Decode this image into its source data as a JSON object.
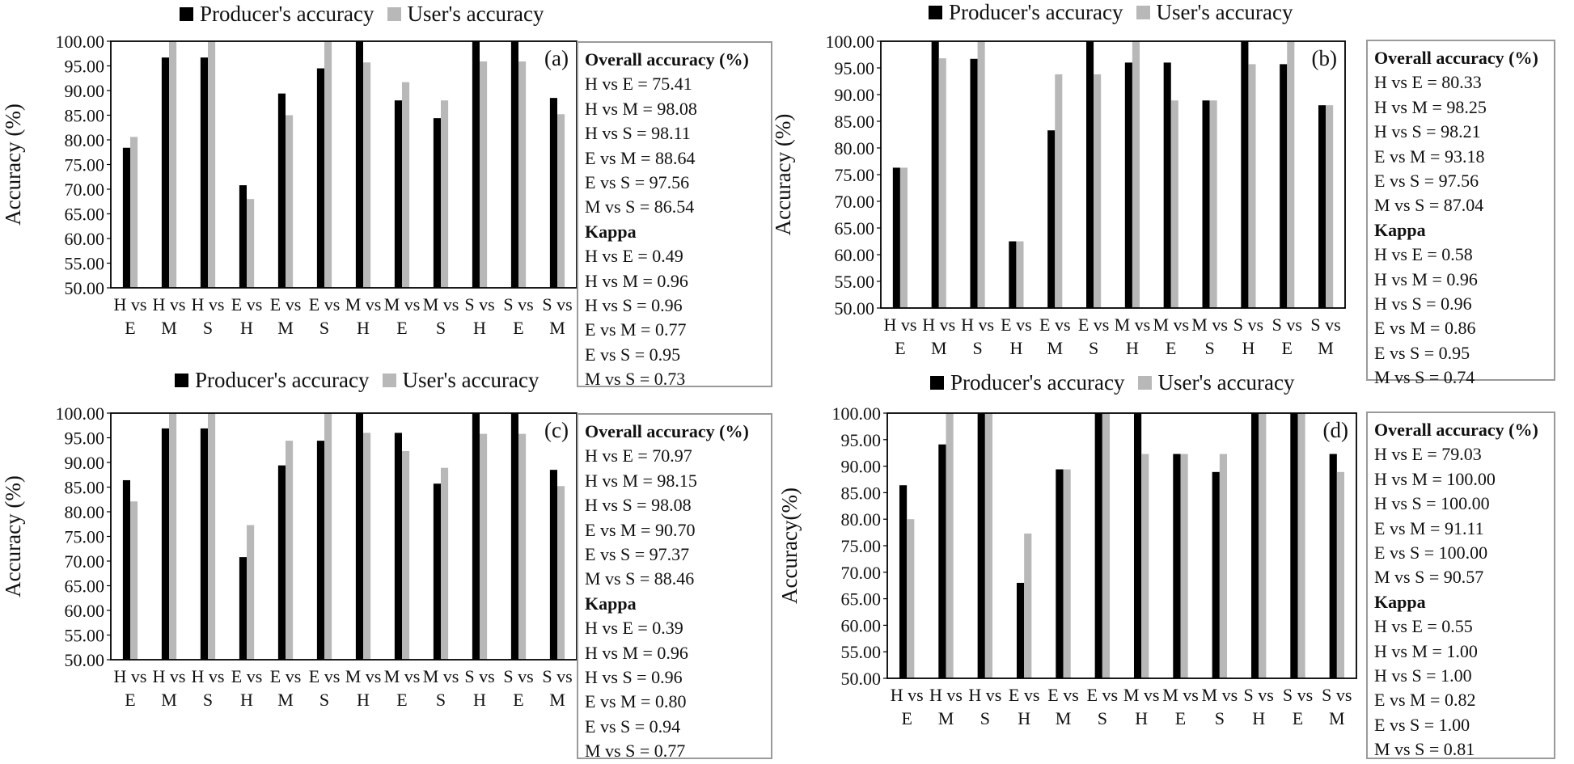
{
  "colors": {
    "producer": "#000000",
    "user": "#b8b8b8"
  },
  "panels": [
    {
      "id": "a",
      "legend": [
        "Producer's accuracy",
        "User's accuracy"
      ],
      "panel_label": "(a)",
      "stats": {
        "overall_title": "Overall accuracy (%)",
        "overall": [
          "H vs E = 75.41",
          "H vs M = 98.08",
          "H vs S = 98.11",
          "E vs M = 88.64",
          "E vs S = 97.56",
          "M vs S = 86.54"
        ],
        "kappa_title": "Kappa",
        "kappa": [
          "H vs E =  0.49",
          "H vs M = 0.96",
          "H vs S = 0.96",
          "E vs M = 0.77",
          "E vs S = 0.95",
          "M vs S = 0.73"
        ]
      }
    },
    {
      "id": "b",
      "legend": [
        "Producer's accuracy",
        "User's accuracy"
      ],
      "panel_label": "(b)",
      "stats": {
        "overall_title": "Overall accuracy (%)",
        "overall": [
          "H vs E = 80.33",
          "H vs M = 98.25",
          "H vs S = 98.21",
          "E vs M = 93.18",
          "E vs S = 97.56",
          "M vs S = 87.04"
        ],
        "kappa_title": "Kappa",
        "kappa": [
          "H vs E =  0.58",
          "H vs M = 0.96",
          "H vs S = 0.96",
          "E vs M = 0.86",
          "E vs S = 0.95",
          "M vs S = 0.74"
        ]
      }
    },
    {
      "id": "c",
      "legend": [
        "Producer's accuracy",
        "User's accuracy"
      ],
      "panel_label": "(c)",
      "stats": {
        "overall_title": "Overall accuracy (%)",
        "overall": [
          "H vs E = 70.97",
          "H vs M = 98.15",
          "H vs S = 98.08",
          "E vs M = 90.70",
          "E vs S = 97.37",
          "M vs S = 88.46"
        ],
        "kappa_title": "Kappa",
        "kappa": [
          "H vs E =  0.39",
          "H vs M = 0.96",
          "H vs S = 0.96",
          "E vs M = 0.80",
          "E vs S = 0.94",
          "M vs S = 0.77"
        ]
      }
    },
    {
      "id": "d",
      "legend": [
        "Producer's accuracy",
        "User's accuracy"
      ],
      "panel_label": "(d)",
      "stats": {
        "overall_title": "Overall accuracy (%)",
        "overall": [
          "H vs E = 79.03",
          "H vs M = 100.00",
          "H vs S = 100.00",
          "E vs M = 91.11",
          "E vs S = 100.00",
          "M vs S = 90.57"
        ],
        "kappa_title": "Kappa",
        "kappa": [
          "H vs E =  0.55",
          "H vs M = 1.00",
          "H vs S = 1.00",
          "E vs M = 0.82",
          "E vs S = 1.00",
          "M vs S = 0.81"
        ]
      }
    }
  ],
  "chart_data": [
    {
      "type": "bar",
      "panel": "(a)",
      "categories": [
        [
          "H vs",
          "E"
        ],
        [
          "H vs",
          "M"
        ],
        [
          "H vs",
          "S"
        ],
        [
          "E vs",
          "H"
        ],
        [
          "E vs",
          "M"
        ],
        [
          "E vs",
          "S"
        ],
        [
          "M vs",
          "H"
        ],
        [
          "M vs",
          "E"
        ],
        [
          "M vs",
          "S"
        ],
        [
          "S vs",
          "H"
        ],
        [
          "S vs",
          "E"
        ],
        [
          "S vs",
          "M"
        ]
      ],
      "series": [
        {
          "name": "Producer's accuracy",
          "values": [
            78.4,
            96.7,
            96.7,
            70.8,
            89.4,
            94.5,
            100,
            88.0,
            84.4,
            100,
            100,
            88.5
          ]
        },
        {
          "name": "User's accuracy",
          "values": [
            80.6,
            100,
            100,
            68.0,
            85.0,
            100,
            95.7,
            91.7,
            88.0,
            95.9,
            95.9,
            85.2
          ]
        }
      ],
      "ylabel": "Accuracy (%)",
      "ylim": [
        50,
        100
      ],
      "yticks": [
        "50.00",
        "55.00",
        "60.00",
        "65.00",
        "70.00",
        "75.00",
        "80.00",
        "85.00",
        "90.00",
        "95.00",
        "100.00"
      ]
    },
    {
      "type": "bar",
      "panel": "(b)",
      "categories": [
        [
          "H vs",
          "E"
        ],
        [
          "H vs",
          "M"
        ],
        [
          "H vs",
          "S"
        ],
        [
          "E vs",
          "H"
        ],
        [
          "E vs",
          "M"
        ],
        [
          "E vs",
          "S"
        ],
        [
          "M vs",
          "H"
        ],
        [
          "M vs",
          "E"
        ],
        [
          "M vs",
          "S"
        ],
        [
          "S vs",
          "H"
        ],
        [
          "S vs",
          "E"
        ],
        [
          "S vs",
          "M"
        ]
      ],
      "series": [
        {
          "name": "Producer's accuracy",
          "values": [
            76.3,
            100,
            96.7,
            62.5,
            83.3,
            100,
            96.0,
            96.0,
            88.9,
            100,
            95.7,
            88.0
          ]
        },
        {
          "name": "User's accuracy",
          "values": [
            76.3,
            96.8,
            100,
            62.5,
            93.8,
            93.8,
            100,
            88.9,
            88.9,
            95.7,
            100,
            88.0
          ]
        }
      ],
      "ylabel": "Accuracy (%)",
      "ylim": [
        50,
        100
      ],
      "yticks": [
        "50.00",
        "55.00",
        "60.00",
        "65.00",
        "70.00",
        "75.00",
        "80.00",
        "85.00",
        "90.00",
        "95.00",
        "100.00"
      ]
    },
    {
      "type": "bar",
      "panel": "(c)",
      "categories": [
        [
          "H vs",
          "E"
        ],
        [
          "H vs",
          "M"
        ],
        [
          "H vs",
          "S"
        ],
        [
          "E vs",
          "H"
        ],
        [
          "E vs",
          "M"
        ],
        [
          "E vs",
          "S"
        ],
        [
          "M vs",
          "H"
        ],
        [
          "M vs",
          "E"
        ],
        [
          "M vs",
          "S"
        ],
        [
          "S vs",
          "H"
        ],
        [
          "S vs",
          "E"
        ],
        [
          "S vs",
          "M"
        ]
      ],
      "series": [
        {
          "name": "Producer's accuracy",
          "values": [
            86.4,
            96.9,
            96.9,
            70.8,
            89.4,
            94.4,
            100,
            96.0,
            85.7,
            100,
            100,
            88.5
          ]
        },
        {
          "name": "User's accuracy",
          "values": [
            82.1,
            100,
            100,
            77.3,
            94.4,
            100,
            96.0,
            92.3,
            88.9,
            95.8,
            95.8,
            85.2
          ]
        }
      ],
      "ylabel": "Accuracy (%)",
      "ylim": [
        50,
        100
      ],
      "yticks": [
        "50.00",
        "55.00",
        "60.00",
        "65.00",
        "70.00",
        "75.00",
        "80.00",
        "85.00",
        "90.00",
        "95.00",
        "100.00"
      ]
    },
    {
      "type": "bar",
      "panel": "(d)",
      "categories": [
        [
          "H vs",
          "E"
        ],
        [
          "H vs",
          "M"
        ],
        [
          "H vs",
          "S"
        ],
        [
          "E vs",
          "H"
        ],
        [
          "E vs",
          "M"
        ],
        [
          "E vs",
          "S"
        ],
        [
          "M vs",
          "H"
        ],
        [
          "M vs",
          "E"
        ],
        [
          "M vs",
          "S"
        ],
        [
          "S vs",
          "H"
        ],
        [
          "S vs",
          "E"
        ],
        [
          "S vs",
          "M"
        ]
      ],
      "series": [
        {
          "name": "Producer's accuracy",
          "values": [
            86.4,
            94.1,
            100,
            68.0,
            89.4,
            100,
            100,
            92.3,
            88.9,
            100,
            100,
            92.3
          ]
        },
        {
          "name": "User's accuracy",
          "values": [
            80.0,
            100,
            100,
            77.3,
            89.4,
            100,
            92.3,
            92.3,
            92.3,
            100,
            100,
            88.9
          ]
        }
      ],
      "ylabel": "Accuracy(%)",
      "ylim": [
        50,
        100
      ],
      "yticks": [
        "50.00",
        "55.00",
        "60.00",
        "65.00",
        "70.00",
        "75.00",
        "80.00",
        "85.00",
        "90.00",
        "95.00",
        "100.00"
      ]
    }
  ]
}
